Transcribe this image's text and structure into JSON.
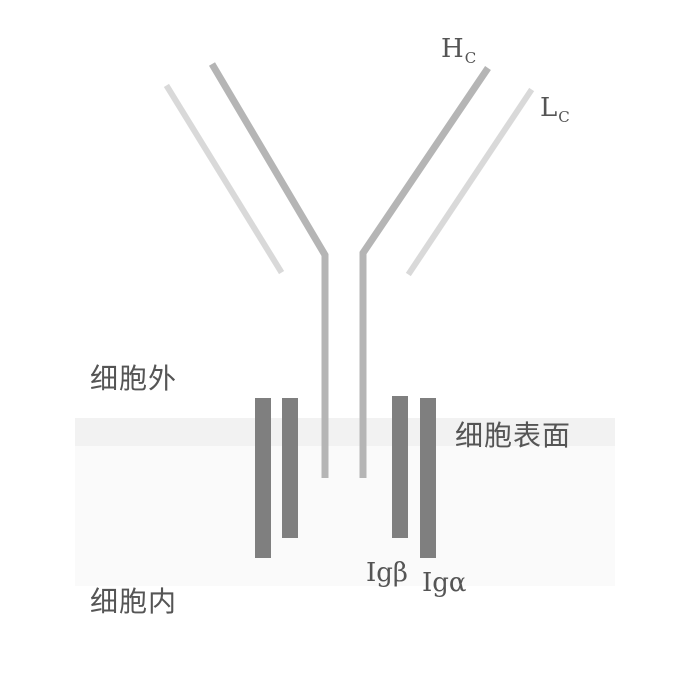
{
  "diagram": {
    "heavy_chain_label": "H",
    "heavy_chain_sub": "C",
    "light_chain_label": "L",
    "light_chain_sub": "C",
    "outside_label": "细胞外",
    "surface_label": "细胞表面",
    "inside_label": "细胞内",
    "ig_beta_label": "Igβ",
    "ig_alpha_label": "Igα"
  },
  "colors": {
    "heavy_chain": "#b3b3b3",
    "light_chain": "#d6d6d6",
    "ig_bars": "#7b7b7b",
    "text": "#555555",
    "membrane": "#f0f0f0"
  }
}
